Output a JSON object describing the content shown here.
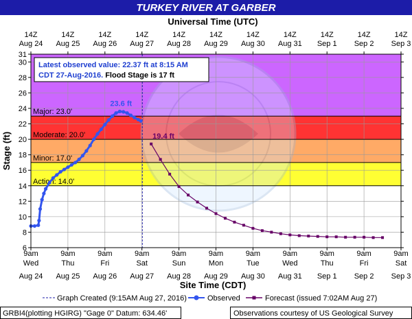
{
  "title": "TURKEY RIVER AT GARBER",
  "top_axis_title": "Universal Time (UTC)",
  "bottom_axis_title": "Site Time (CDT)",
  "y_axis_title": "Stage (ft)",
  "colors": {
    "title_band": "#1c1ca8",
    "major": "#cc66ff",
    "moderate": "#ff3333",
    "minor": "#ffaa66",
    "action": "#ffff33",
    "observed": "#3355ee",
    "forecast": "#660066"
  },
  "info_box": {
    "line1": "Latest observed value: 22.37 ft at 8:15 AM",
    "line2a": "CDT 27-Aug-2016.",
    "line2b": " Flood Stage is 17 ft"
  },
  "legend": {
    "graph_created": "Graph Created (9:15AM Aug 27, 2016)",
    "observed": "Observed",
    "forecast": "Forecast (issued 7:02AM Aug 27)"
  },
  "footer": {
    "left": "GRBI4(plotting HGIRG) \"Gage 0\" Datum:  634.46'",
    "right": "Observations courtesy of US Geological Survey"
  },
  "chart_data": {
    "type": "line",
    "title": "TURKEY RIVER AT GARBER",
    "xlabel": "Site Time (CDT)",
    "x2label": "Universal Time (UTC)",
    "ylabel": "Stage (ft)",
    "ylim": [
      6,
      31
    ],
    "y_ticks": [
      6,
      8,
      10,
      12,
      14,
      16,
      18,
      20,
      22,
      24,
      26,
      28,
      30,
      31
    ],
    "grid": true,
    "x_ticks_bottom": [
      {
        "time": "9am",
        "day": "Wed",
        "date": "Aug 24"
      },
      {
        "time": "9am",
        "day": "Thu",
        "date": "Aug 25"
      },
      {
        "time": "9am",
        "day": "Fri",
        "date": "Aug 26"
      },
      {
        "time": "9am",
        "day": "Sat",
        "date": "Aug 27"
      },
      {
        "time": "9am",
        "day": "Sun",
        "date": "Aug 28"
      },
      {
        "time": "9am",
        "day": "Mon",
        "date": "Aug 29"
      },
      {
        "time": "9am",
        "day": "Tue",
        "date": "Aug 30"
      },
      {
        "time": "9am",
        "day": "Wed",
        "date": "Aug 31"
      },
      {
        "time": "9am",
        "day": "Thu",
        "date": "Sep 1"
      },
      {
        "time": "9am",
        "day": "Fri",
        "date": "Sep 2"
      },
      {
        "time": "9am",
        "day": "Sat",
        "date": "Sep 3"
      }
    ],
    "x_ticks_top": [
      {
        "hour": "14Z",
        "date": "Aug 24"
      },
      {
        "hour": "14Z",
        "date": "Aug 25"
      },
      {
        "hour": "14Z",
        "date": "Aug 26"
      },
      {
        "hour": "14Z",
        "date": "Aug 27"
      },
      {
        "hour": "14Z",
        "date": "Aug 28"
      },
      {
        "hour": "14Z",
        "date": "Aug 29"
      },
      {
        "hour": "14Z",
        "date": "Aug 30"
      },
      {
        "hour": "14Z",
        "date": "Aug 31"
      },
      {
        "hour": "14Z",
        "date": "Sep 1"
      },
      {
        "hour": "14Z",
        "date": "Sep 2"
      },
      {
        "hour": "14Z",
        "date": "Sep 3"
      }
    ],
    "flood_categories": [
      {
        "name": "Major",
        "label": "Major: 23.0'",
        "stage": 23.0,
        "top": 31
      },
      {
        "name": "Moderate",
        "label": "Moderate: 20.0'",
        "stage": 20.0,
        "top": 23.0
      },
      {
        "name": "Minor",
        "label": "Minor: 17.0'",
        "stage": 17.0,
        "top": 20.0
      },
      {
        "name": "Action",
        "label": "Action: 14.0'",
        "stage": 14.0,
        "top": 17.0
      }
    ],
    "graph_created_day": 3.01,
    "series": [
      {
        "name": "Observed",
        "x_unit": "days since Aug 24 9am CDT",
        "x": [
          0.0,
          0.1,
          0.2,
          0.22,
          0.25,
          0.3,
          0.35,
          0.4,
          0.5,
          0.6,
          0.7,
          0.8,
          0.9,
          1.0,
          1.1,
          1.2,
          1.3,
          1.4,
          1.5,
          1.6,
          1.7,
          1.8,
          1.9,
          2.0,
          2.1,
          2.2,
          2.3,
          2.4,
          2.5,
          2.6,
          2.7,
          2.8,
          2.9,
          2.97
        ],
        "values": [
          8.8,
          8.8,
          8.9,
          9.5,
          11.0,
          12.2,
          13.0,
          13.6,
          14.4,
          15.0,
          15.4,
          15.8,
          16.1,
          16.4,
          16.7,
          17.0,
          17.4,
          17.9,
          18.5,
          19.2,
          20.0,
          20.7,
          21.3,
          21.9,
          22.5,
          23.0,
          23.4,
          23.6,
          23.55,
          23.4,
          23.1,
          22.8,
          22.55,
          22.37
        ]
      },
      {
        "name": "Forecast",
        "x_unit": "days since Aug 24 9am CDT",
        "x": [
          3.25,
          3.5,
          3.75,
          4.0,
          4.25,
          4.5,
          4.75,
          5.0,
          5.25,
          5.5,
          5.75,
          6.0,
          6.25,
          6.5,
          6.75,
          7.0,
          7.25,
          7.5,
          7.75,
          8.0,
          8.25,
          8.5,
          8.75,
          9.0,
          9.25,
          9.5
        ],
        "values": [
          19.4,
          17.4,
          15.5,
          13.9,
          12.8,
          11.9,
          11.1,
          10.4,
          9.8,
          9.3,
          8.9,
          8.5,
          8.2,
          8.0,
          7.8,
          7.65,
          7.55,
          7.5,
          7.45,
          7.4,
          7.4,
          7.35,
          7.35,
          7.35,
          7.3,
          7.3
        ]
      }
    ],
    "annotations": [
      {
        "text": "23.6 ft",
        "x": 2.4,
        "y": 23.6,
        "series": "Observed"
      },
      {
        "text": "19.4 ft",
        "x": 3.25,
        "y": 19.4,
        "series": "Forecast"
      }
    ]
  }
}
